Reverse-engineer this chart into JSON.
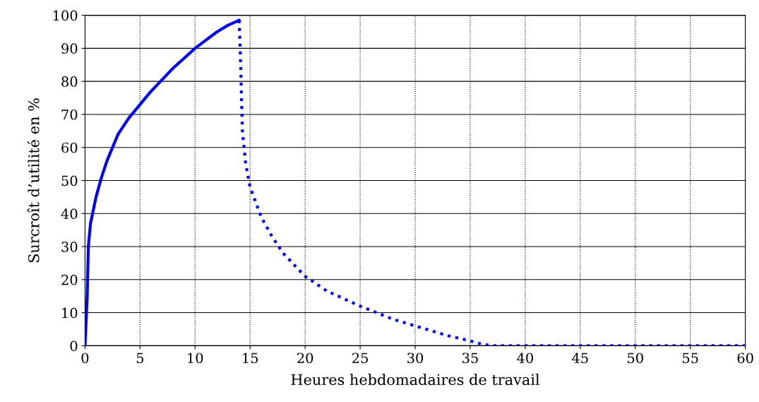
{
  "chart_data": {
    "type": "line",
    "xlabel": "Heures hebdomadaires de travail",
    "ylabel": "Surcroît d’utilité en %",
    "xlim": [
      0,
      60
    ],
    "xticks": [
      0,
      5,
      10,
      15,
      20,
      25,
      30,
      35,
      40,
      45,
      50,
      55,
      60
    ],
    "ylim": [
      0,
      100
    ],
    "yticks": [
      0,
      10,
      20,
      30,
      40,
      50,
      60,
      70,
      80,
      90,
      100
    ],
    "grid": true,
    "marker": "none",
    "series": [
      {
        "color": "#0000ff",
        "line_style": "solid",
        "x": [
          0,
          0.2,
          0.3,
          0.5,
          1,
          1.5,
          2,
          2.5,
          3,
          4,
          5,
          6,
          7,
          8,
          9,
          10,
          11,
          12,
          13,
          14
        ],
        "values": [
          0,
          15,
          30,
          37,
          45,
          51,
          56,
          60,
          64,
          69,
          73,
          77,
          80.5,
          84,
          87,
          90,
          92.5,
          95,
          97,
          98.5
        ]
      },
      {
        "color": "#0000ff",
        "line_style": "dotted",
        "x": [
          14,
          14.1,
          14.3,
          14.6,
          15,
          16,
          17,
          18,
          20,
          22,
          25,
          28,
          30,
          33,
          35,
          36,
          37,
          60
        ],
        "values": [
          98.5,
          90,
          65,
          55,
          48,
          39,
          33,
          28,
          21,
          16.5,
          12,
          8,
          6,
          3,
          1.5,
          0.5,
          0,
          0
        ]
      }
    ]
  }
}
